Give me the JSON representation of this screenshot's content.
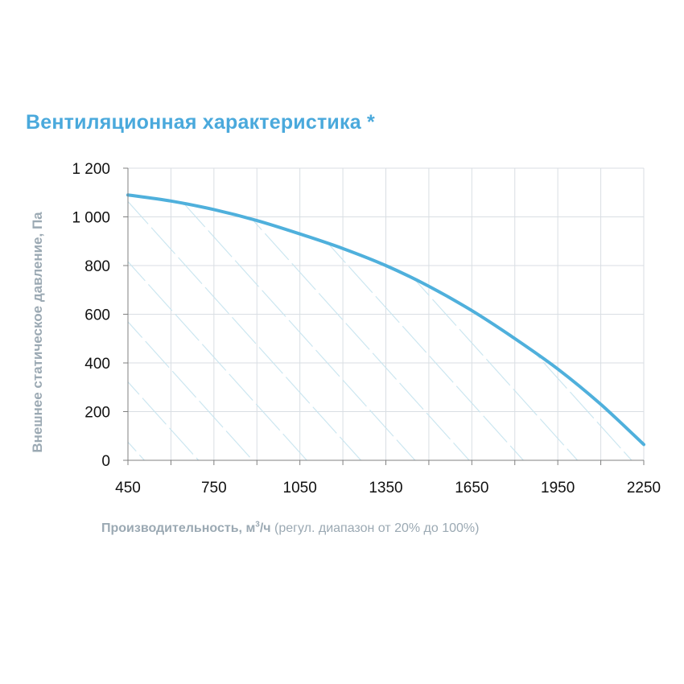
{
  "chart_data": {
    "type": "area",
    "title": "Вентиляционная характеристика *",
    "xlabel_main": "Производительность, м",
    "xlabel_sup": "3",
    "xlabel_unit": "/ч",
    "xlabel_note": " (регул. диапазон от 20% до 100%)",
    "ylabel": "Внешнее статическое давление, Па",
    "xlim": [
      450,
      2250
    ],
    "ylim": [
      0,
      1200
    ],
    "x_ticks": [
      450,
      750,
      1050,
      1350,
      1650,
      1950,
      2250
    ],
    "x_tick_labels": [
      "450",
      "750",
      "1050",
      "1350",
      "1650",
      "1950",
      "2250"
    ],
    "y_ticks": [
      0,
      200,
      400,
      600,
      800,
      1000,
      1200
    ],
    "y_tick_labels": [
      "0",
      "200",
      "400",
      "600",
      "800",
      "1 000",
      "1 200"
    ],
    "x_minor_grid_step": 150,
    "grid": true,
    "fill_pattern": "diagonal-hatch",
    "series": [
      {
        "x": [
          450,
          600,
          750,
          900,
          1050,
          1200,
          1350,
          1500,
          1650,
          1800,
          1950,
          2100,
          2250
        ],
        "y": [
          1090,
          1065,
          1030,
          985,
          930,
          870,
          800,
          715,
          615,
          500,
          375,
          230,
          65
        ]
      }
    ],
    "colors": {
      "line": "#4fb0dc",
      "hatch": "#c7e4ef",
      "grid": "#d9dee3",
      "title": "#4aa9dc",
      "label": "#9ba9b3"
    }
  }
}
